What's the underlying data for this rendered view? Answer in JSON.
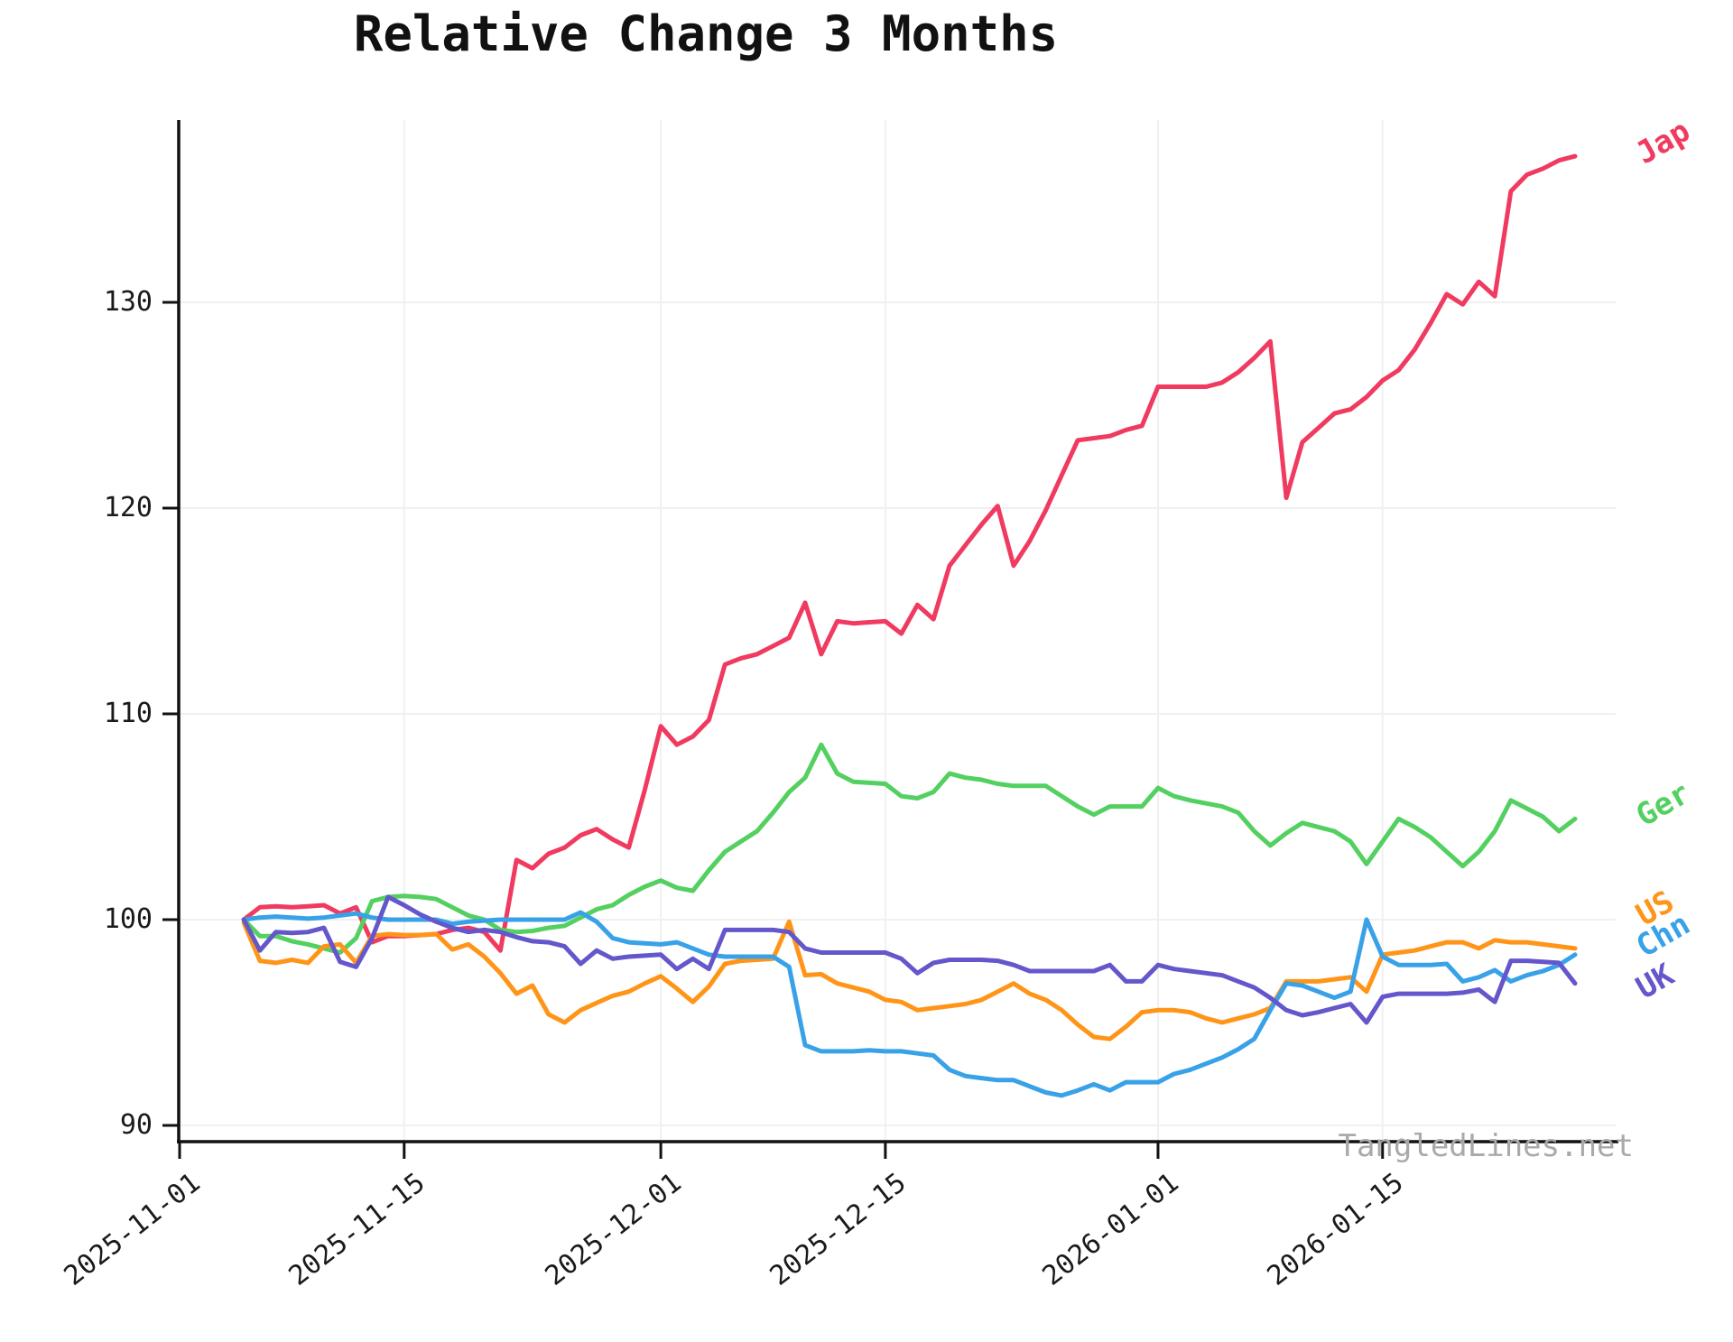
{
  "watermark": "TangledLines.net",
  "chart_data": {
    "type": "line",
    "title": "Relative Change 3 Months",
    "grid": true,
    "legend_position": "end-of-line labels, right side",
    "x_start": "2025-11-01",
    "x_tick_labels": [
      "2025-11-01",
      "2025-11-15",
      "2025-12-01",
      "2025-12-15",
      "2026-01-01",
      "2026-01-15"
    ],
    "y_ticks": [
      90,
      100,
      110,
      120,
      130
    ],
    "ylim": [
      89.5,
      138.5
    ],
    "axis_color": "#111111",
    "grid_color": "#f0f0f0",
    "dates": [
      "2025-11-05",
      "2025-11-06",
      "2025-11-07",
      "2025-11-08",
      "2025-11-09",
      "2025-11-10",
      "2025-11-11",
      "2025-11-12",
      "2025-11-13",
      "2025-11-14",
      "2025-11-15",
      "2025-11-16",
      "2025-11-17",
      "2025-11-18",
      "2025-11-19",
      "2025-11-20",
      "2025-11-21",
      "2025-11-22",
      "2025-11-23",
      "2025-11-24",
      "2025-11-25",
      "2025-11-26",
      "2025-11-27",
      "2025-11-28",
      "2025-11-29",
      "2025-11-30",
      "2025-12-01",
      "2025-12-02",
      "2025-12-03",
      "2025-12-04",
      "2025-12-05",
      "2025-12-06",
      "2025-12-07",
      "2025-12-08",
      "2025-12-09",
      "2025-12-10",
      "2025-12-11",
      "2025-12-12",
      "2025-12-13",
      "2025-12-14",
      "2025-12-15",
      "2025-12-16",
      "2025-12-17",
      "2025-12-18",
      "2025-12-19",
      "2025-12-20",
      "2025-12-21",
      "2025-12-22",
      "2025-12-23",
      "2025-12-24",
      "2025-12-25",
      "2025-12-26",
      "2025-12-27",
      "2025-12-28",
      "2025-12-29",
      "2025-12-30",
      "2025-12-31",
      "2026-01-01",
      "2026-01-02",
      "2026-01-03",
      "2026-01-04",
      "2026-01-05",
      "2026-01-06",
      "2026-01-07",
      "2026-01-08",
      "2026-01-09",
      "2026-01-10",
      "2026-01-11",
      "2026-01-12",
      "2026-01-13",
      "2026-01-14",
      "2026-01-15",
      "2026-01-16",
      "2026-01-17",
      "2026-01-18",
      "2026-01-19",
      "2026-01-20",
      "2026-01-21",
      "2026-01-22",
      "2026-01-23",
      "2026-01-24",
      "2026-01-25",
      "2026-01-26",
      "2026-01-27"
    ],
    "series": [
      {
        "name": "Jap",
        "color": "#f03a5f",
        "values": [
          100.0,
          100.6,
          100.65,
          100.6,
          100.65,
          100.7,
          100.3,
          100.6,
          98.9,
          99.2,
          99.2,
          99.25,
          99.3,
          99.5,
          99.6,
          99.4,
          98.5,
          102.9,
          102.5,
          103.2,
          103.5,
          104.1,
          104.4,
          103.9,
          103.5,
          106.3,
          109.4,
          108.5,
          108.9,
          109.7,
          112.4,
          112.7,
          112.9,
          113.3,
          113.7,
          115.4,
          112.9,
          114.5,
          114.4,
          114.45,
          114.5,
          113.9,
          115.3,
          114.6,
          117.2,
          118.2,
          119.2,
          120.1,
          117.2,
          118.4,
          119.9,
          121.6,
          123.3,
          123.4,
          123.5,
          123.8,
          124.0,
          125.9,
          125.9,
          125.9,
          125.9,
          126.1,
          126.6,
          127.3,
          128.1,
          120.5,
          123.2,
          123.9,
          124.6,
          124.8,
          125.4,
          126.2,
          126.7,
          127.7,
          129.0,
          130.4,
          129.9,
          131.0,
          130.3,
          135.4,
          136.2,
          136.5,
          136.9,
          137.1
        ]
      },
      {
        "name": "Ger",
        "color": "#53d060",
        "values": [
          100.0,
          99.2,
          99.2,
          98.95,
          98.8,
          98.6,
          98.4,
          99.1,
          100.9,
          101.1,
          101.15,
          101.1,
          101.0,
          100.6,
          100.2,
          100.0,
          99.5,
          99.4,
          99.45,
          99.6,
          99.7,
          100.1,
          100.5,
          100.7,
          101.2,
          101.6,
          101.9,
          101.55,
          101.4,
          102.4,
          103.3,
          103.8,
          104.3,
          105.2,
          106.2,
          106.9,
          108.5,
          107.1,
          106.7,
          106.65,
          106.6,
          106.0,
          105.9,
          106.2,
          107.1,
          106.9,
          106.8,
          106.6,
          106.5,
          106.5,
          106.5,
          106.0,
          105.5,
          105.1,
          105.5,
          105.5,
          105.5,
          106.4,
          106.0,
          105.8,
          105.65,
          105.5,
          105.2,
          104.3,
          103.6,
          104.2,
          104.7,
          104.5,
          104.3,
          103.8,
          102.7,
          103.8,
          104.9,
          104.5,
          104.0,
          103.3,
          102.6,
          103.3,
          104.3,
          105.8,
          105.4,
          105.0,
          104.3,
          104.9
        ]
      },
      {
        "name": "US",
        "color": "#ff9518",
        "values": [
          99.85,
          98.0,
          97.9,
          98.05,
          97.9,
          98.7,
          98.8,
          97.9,
          99.2,
          99.3,
          99.25,
          99.25,
          99.3,
          98.55,
          98.8,
          98.2,
          97.4,
          96.4,
          96.8,
          95.4,
          95.0,
          95.6,
          95.95,
          96.3,
          96.5,
          96.9,
          97.25,
          96.65,
          96.0,
          96.75,
          97.85,
          98.0,
          98.05,
          98.1,
          99.9,
          97.3,
          97.35,
          96.9,
          96.7,
          96.5,
          96.1,
          96.0,
          95.6,
          95.7,
          95.8,
          95.9,
          96.1,
          96.5,
          96.9,
          96.4,
          96.1,
          95.6,
          94.9,
          94.3,
          94.2,
          94.8,
          95.5,
          95.6,
          95.6,
          95.5,
          95.2,
          95.0,
          95.2,
          95.4,
          95.7,
          97.0,
          97.0,
          97.0,
          97.1,
          97.2,
          96.5,
          98.3,
          98.4,
          98.5,
          98.7,
          98.9,
          98.9,
          98.6,
          99.0,
          98.9,
          98.9,
          98.8,
          98.7,
          98.6
        ]
      },
      {
        "name": "Chn",
        "color": "#38a1e8",
        "values": [
          100.0,
          100.1,
          100.15,
          100.1,
          100.05,
          100.1,
          100.2,
          100.3,
          100.1,
          100.0,
          100.0,
          100.0,
          100.0,
          99.8,
          99.9,
          99.95,
          100.0,
          100.0,
          100.0,
          100.0,
          100.0,
          100.35,
          99.9,
          99.1,
          98.9,
          98.85,
          98.8,
          98.9,
          98.6,
          98.3,
          98.2,
          98.2,
          98.2,
          98.2,
          97.7,
          93.9,
          93.6,
          93.6,
          93.6,
          93.65,
          93.6,
          93.6,
          93.5,
          93.4,
          92.7,
          92.4,
          92.3,
          92.2,
          92.2,
          91.9,
          91.6,
          91.45,
          91.7,
          92.0,
          91.7,
          92.1,
          92.1,
          92.1,
          92.5,
          92.7,
          93.0,
          93.3,
          93.7,
          94.2,
          95.6,
          96.9,
          96.8,
          96.5,
          96.2,
          96.5,
          100.0,
          98.2,
          97.8,
          97.8,
          97.8,
          97.85,
          97.0,
          97.2,
          97.55,
          97.0,
          97.3,
          97.5,
          97.8,
          98.3
        ]
      },
      {
        "name": "UK",
        "color": "#6456cb",
        "values": [
          100.0,
          98.5,
          99.4,
          99.35,
          99.4,
          99.6,
          97.95,
          97.7,
          99.1,
          101.1,
          100.7,
          100.25,
          99.9,
          99.6,
          99.4,
          99.5,
          99.4,
          99.15,
          98.95,
          98.9,
          98.7,
          97.85,
          98.5,
          98.1,
          98.2,
          98.25,
          98.3,
          97.6,
          98.1,
          97.6,
          99.5,
          99.5,
          99.5,
          99.5,
          99.4,
          98.6,
          98.4,
          98.4,
          98.4,
          98.4,
          98.4,
          98.1,
          97.4,
          97.9,
          98.05,
          98.05,
          98.05,
          98.0,
          97.8,
          97.5,
          97.5,
          97.5,
          97.5,
          97.5,
          97.8,
          97.0,
          97.0,
          97.8,
          97.6,
          97.5,
          97.4,
          97.3,
          97.0,
          96.7,
          96.2,
          95.6,
          95.35,
          95.5,
          95.7,
          95.9,
          95.0,
          96.25,
          96.4,
          96.4,
          96.4,
          96.4,
          96.45,
          96.6,
          96.0,
          98.0,
          98.0,
          97.95,
          97.9,
          96.9
        ]
      }
    ]
  }
}
